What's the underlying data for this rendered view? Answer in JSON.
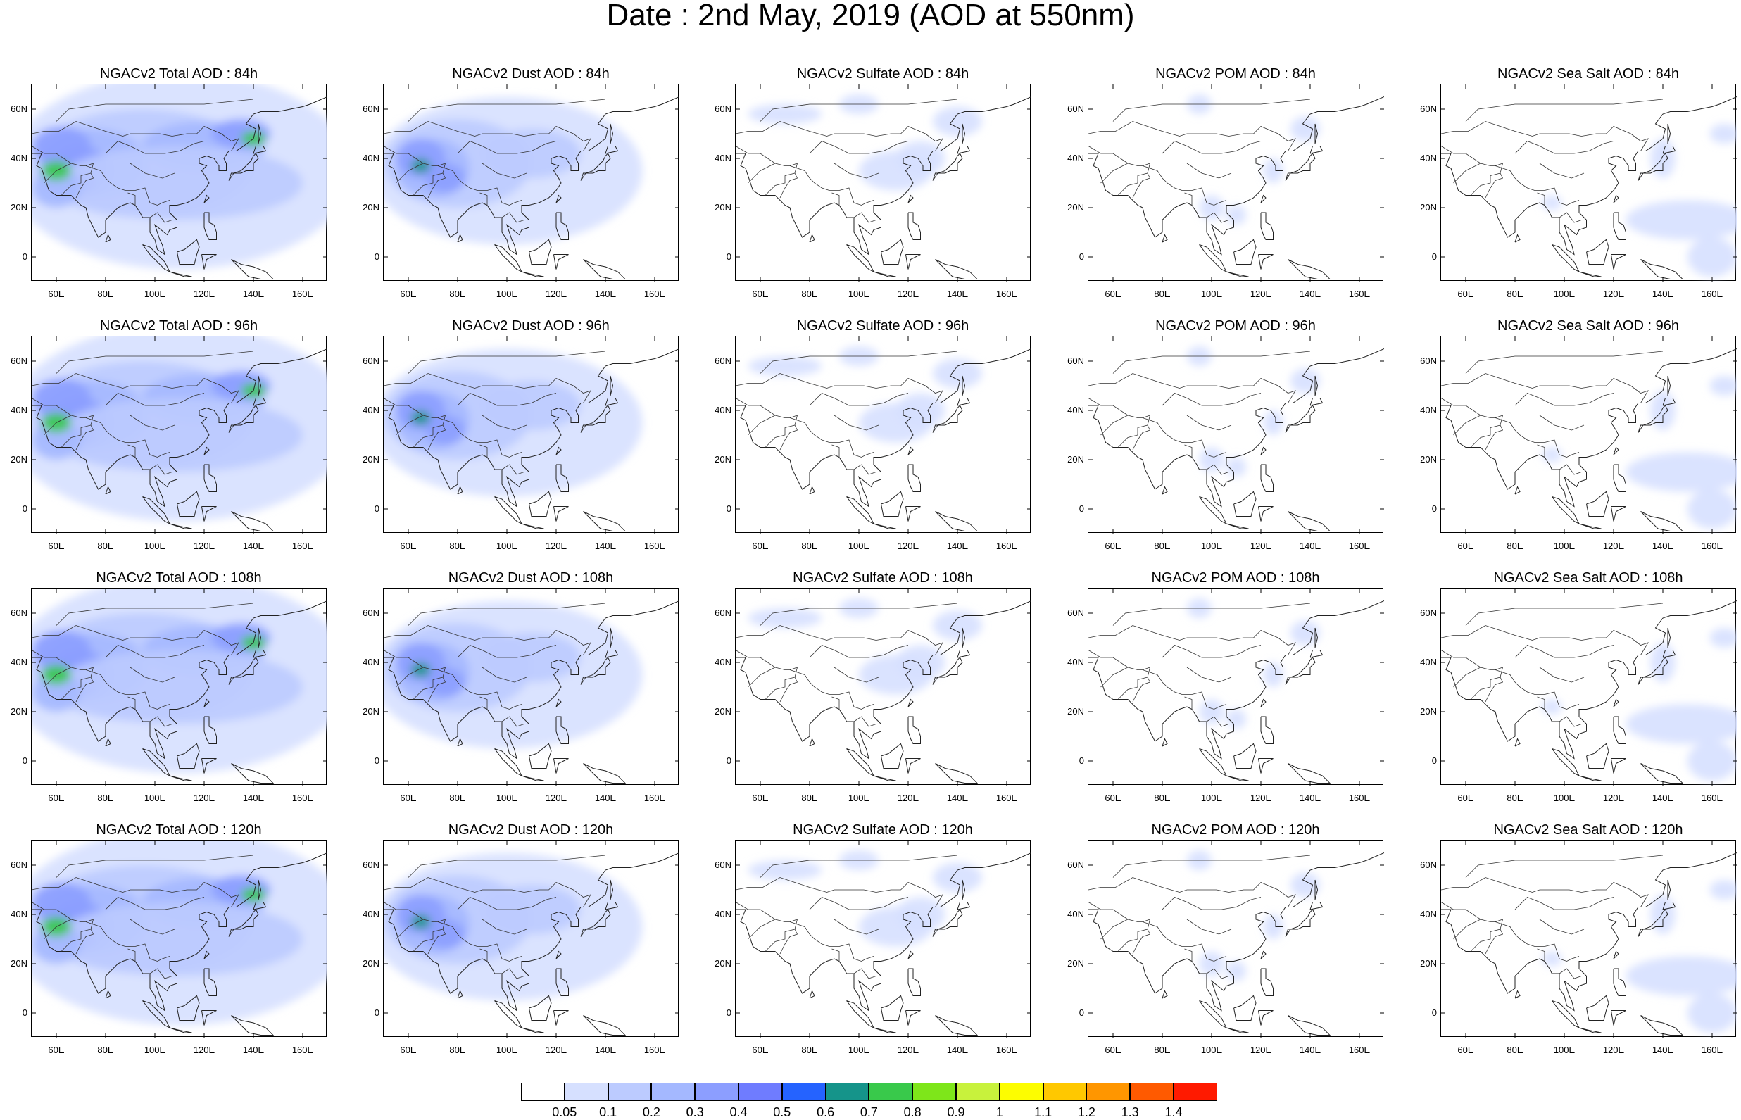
{
  "title": "Date : 2nd May, 2019 (AOD at 550nm)",
  "panels": [
    {
      "title": "NGACv2 Total AOD : 84h",
      "species": "total"
    },
    {
      "title": "NGACv2 Dust AOD : 84h",
      "species": "dust"
    },
    {
      "title": "NGACv2 Sulfate AOD : 84h",
      "species": "sulfate"
    },
    {
      "title": "NGACv2 POM AOD : 84h",
      "species": "pom"
    },
    {
      "title": "NGACv2 Sea Salt AOD : 84h",
      "species": "seasalt"
    },
    {
      "title": "NGACv2 Total AOD : 96h",
      "species": "total"
    },
    {
      "title": "NGACv2 Dust AOD : 96h",
      "species": "dust"
    },
    {
      "title": "NGACv2 Sulfate AOD : 96h",
      "species": "sulfate"
    },
    {
      "title": "NGACv2 POM AOD : 96h",
      "species": "pom"
    },
    {
      "title": "NGACv2 Sea Salt AOD : 96h",
      "species": "seasalt"
    },
    {
      "title": "NGACv2 Total AOD : 108h",
      "species": "total"
    },
    {
      "title": "NGACv2 Dust AOD : 108h",
      "species": "dust"
    },
    {
      "title": "NGACv2 Sulfate AOD : 108h",
      "species": "sulfate"
    },
    {
      "title": "NGACv2 POM AOD : 108h",
      "species": "pom"
    },
    {
      "title": "NGACv2 Sea Salt AOD : 108h",
      "species": "seasalt"
    },
    {
      "title": "NGACv2 Total AOD : 120h",
      "species": "total"
    },
    {
      "title": "NGACv2 Dust AOD : 120h",
      "species": "dust"
    },
    {
      "title": "NGACv2 Sulfate AOD : 120h",
      "species": "sulfate"
    },
    {
      "title": "NGACv2 POM AOD : 120h",
      "species": "pom"
    },
    {
      "title": "NGACv2 Sea Salt  AOD : 120h",
      "species": "seasalt"
    }
  ],
  "axes": {
    "x_ticks": [
      "60E",
      "80E",
      "100E",
      "120E",
      "140E",
      "160E"
    ],
    "y_ticks": [
      "60N",
      "40N",
      "20N",
      "0"
    ],
    "lon_range": [
      50,
      170
    ],
    "lat_range": [
      -10,
      70
    ]
  },
  "colorbar": {
    "labels": [
      "0.05",
      "0.1",
      "0.2",
      "0.3",
      "0.4",
      "0.5",
      "0.6",
      "0.7",
      "0.8",
      "0.9",
      "1",
      "1.1",
      "1.2",
      "1.3",
      "1.4"
    ],
    "colors": [
      "#ffffff",
      "#d6e0ff",
      "#bccbff",
      "#a4b8ff",
      "#8c9eff",
      "#6f7cff",
      "#2563ff",
      "#15948a",
      "#39c94b",
      "#7ee61a",
      "#c8f23c",
      "#fdfd00",
      "#ffc800",
      "#ff9600",
      "#ff5a00",
      "#ff1a00"
    ]
  }
}
